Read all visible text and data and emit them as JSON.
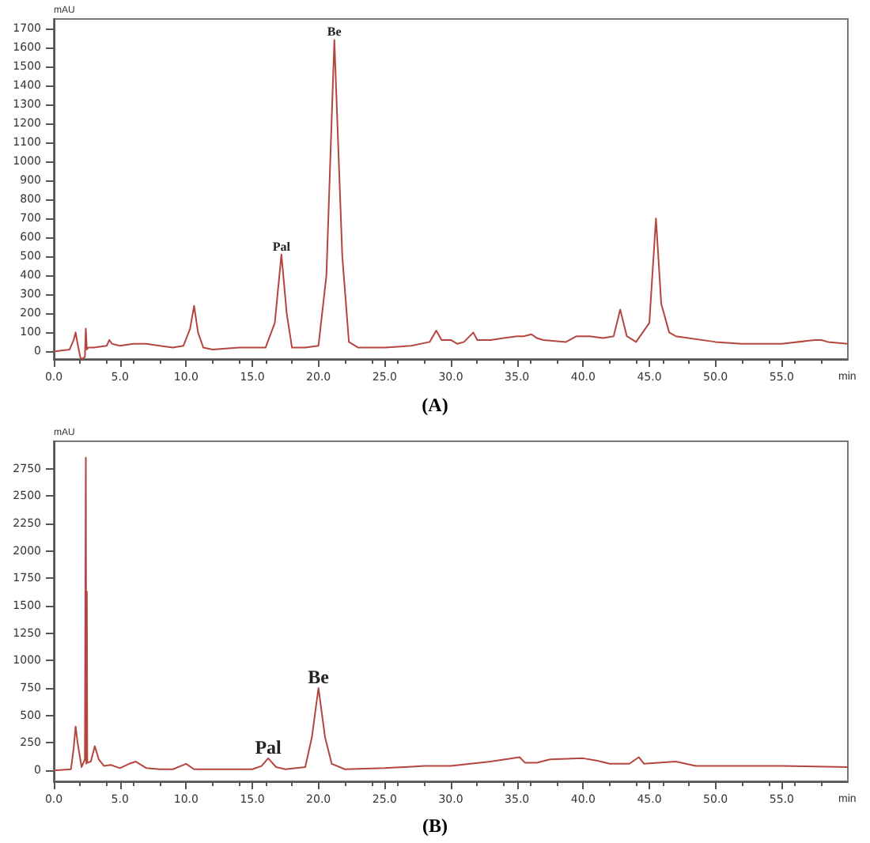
{
  "chart_data": [
    {
      "type": "line",
      "xlabel": "min",
      "ylabel": "mAU",
      "color": "#b5453f",
      "marker": "none",
      "line_style": "solid",
      "grid": false,
      "xlim": [
        0,
        60
      ],
      "ylim": [
        -40,
        1750
      ],
      "xticks": [
        {
          "value": 0,
          "label": "0.0"
        },
        {
          "value": 5,
          "label": "5.0"
        },
        {
          "value": 10,
          "label": "10.0"
        },
        {
          "value": 15,
          "label": "15.0"
        },
        {
          "value": 20,
          "label": "20.0"
        },
        {
          "value": 25,
          "label": "25.0"
        },
        {
          "value": 30,
          "label": "30.0"
        },
        {
          "value": 35,
          "label": "35.0"
        },
        {
          "value": 40,
          "label": "40.0"
        },
        {
          "value": 45,
          "label": "45.0"
        },
        {
          "value": 50,
          "label": "50.0"
        },
        {
          "value": 55,
          "label": "55.0"
        }
      ],
      "yticks": [
        0,
        100,
        200,
        300,
        400,
        500,
        600,
        700,
        800,
        900,
        1000,
        1100,
        1200,
        1300,
        1400,
        1500,
        1600,
        1700
      ],
      "x": [
        0,
        1.2,
        1.5,
        1.65,
        1.8,
        2.0,
        2.1,
        2.35,
        2.42,
        2.5,
        2.6,
        3,
        4,
        4.2,
        4.4,
        5,
        6,
        7,
        8,
        9,
        9.8,
        10.3,
        10.6,
        10.9,
        11.3,
        12,
        14,
        15,
        16,
        16.7,
        17.2,
        17.6,
        18,
        19,
        20,
        20.6,
        21.2,
        21.8,
        22.3,
        23,
        25,
        27,
        28.4,
        28.9,
        29.3,
        30,
        30.5,
        31,
        31.7,
        32,
        33,
        34,
        35,
        35.5,
        36.1,
        36.5,
        37,
        38.7,
        39.5,
        40.5,
        41.5,
        42.3,
        42.8,
        43.3,
        44,
        45,
        45.5,
        45.9,
        46.5,
        47,
        50,
        52,
        55,
        57.5,
        58,
        58.5,
        60
      ],
      "values": [
        0,
        10,
        60,
        100,
        40,
        -30,
        -40,
        -30,
        120,
        10,
        20,
        20,
        30,
        60,
        40,
        30,
        40,
        40,
        30,
        20,
        30,
        120,
        240,
        100,
        20,
        10,
        20,
        20,
        20,
        150,
        510,
        200,
        20,
        20,
        30,
        400,
        1640,
        500,
        50,
        20,
        20,
        30,
        50,
        110,
        60,
        60,
        40,
        50,
        100,
        60,
        60,
        70,
        80,
        80,
        90,
        70,
        60,
        50,
        80,
        80,
        70,
        80,
        220,
        80,
        50,
        150,
        700,
        250,
        100,
        80,
        50,
        40,
        40,
        60,
        60,
        50,
        40
      ],
      "annotations": [
        {
          "text": "Pal",
          "x": 17.2,
          "y": 510
        },
        {
          "text": "Be",
          "x": 21.2,
          "y": 1640
        },
        "(A)"
      ]
    },
    {
      "type": "line",
      "xlabel": "min",
      "ylabel": "mAU",
      "color": "#b5453f",
      "marker": "none",
      "line_style": "solid",
      "grid": false,
      "xlim": [
        0,
        60
      ],
      "ylim": [
        -100,
        3000
      ],
      "xticks": [
        {
          "value": 0,
          "label": "0.0"
        },
        {
          "value": 5,
          "label": "5.0"
        },
        {
          "value": 10,
          "label": "10.0"
        },
        {
          "value": 15,
          "label": "15.0"
        },
        {
          "value": 20,
          "label": "20.0"
        },
        {
          "value": 25,
          "label": "25.0"
        },
        {
          "value": 30,
          "label": "30.0"
        },
        {
          "value": 35,
          "label": "35.0"
        },
        {
          "value": 40,
          "label": "40.0"
        },
        {
          "value": 45,
          "label": "45.0"
        },
        {
          "value": 50,
          "label": "50.0"
        },
        {
          "value": 55,
          "label": "55.0"
        }
      ],
      "yticks": [
        0,
        250,
        500,
        750,
        1000,
        1250,
        1500,
        1750,
        2000,
        2250,
        2500,
        2750
      ],
      "x": [
        0,
        1.3,
        1.5,
        1.65,
        1.8,
        2.1,
        2.35,
        2.42,
        2.46,
        2.5,
        2.53,
        2.58,
        2.8,
        3.1,
        3.4,
        3.8,
        4.3,
        5,
        5.7,
        6.2,
        7,
        8,
        9,
        10,
        10.6,
        12,
        15,
        15.7,
        16.2,
        16.8,
        17.5,
        19,
        19.5,
        20,
        20.5,
        21,
        22,
        25,
        28,
        30,
        33,
        35.2,
        35.6,
        36.5,
        37.5,
        40,
        41,
        42,
        43.5,
        44.2,
        44.6,
        47,
        48.5,
        50,
        55,
        60
      ],
      "values": [
        0,
        10,
        200,
        400,
        250,
        30,
        100,
        2850,
        60,
        1630,
        80,
        70,
        80,
        220,
        100,
        40,
        50,
        20,
        60,
        80,
        20,
        10,
        10,
        60,
        10,
        10,
        10,
        40,
        110,
        30,
        10,
        30,
        300,
        750,
        300,
        60,
        10,
        20,
        40,
        40,
        80,
        120,
        70,
        70,
        100,
        110,
        90,
        60,
        60,
        120,
        60,
        80,
        40,
        40,
        40,
        30
      ],
      "annotations": [
        {
          "text": "Pal",
          "x": 16.2,
          "y": 108
        },
        {
          "text": "Be",
          "x": 20.0,
          "y": 750
        },
        "(B)"
      ]
    }
  ]
}
